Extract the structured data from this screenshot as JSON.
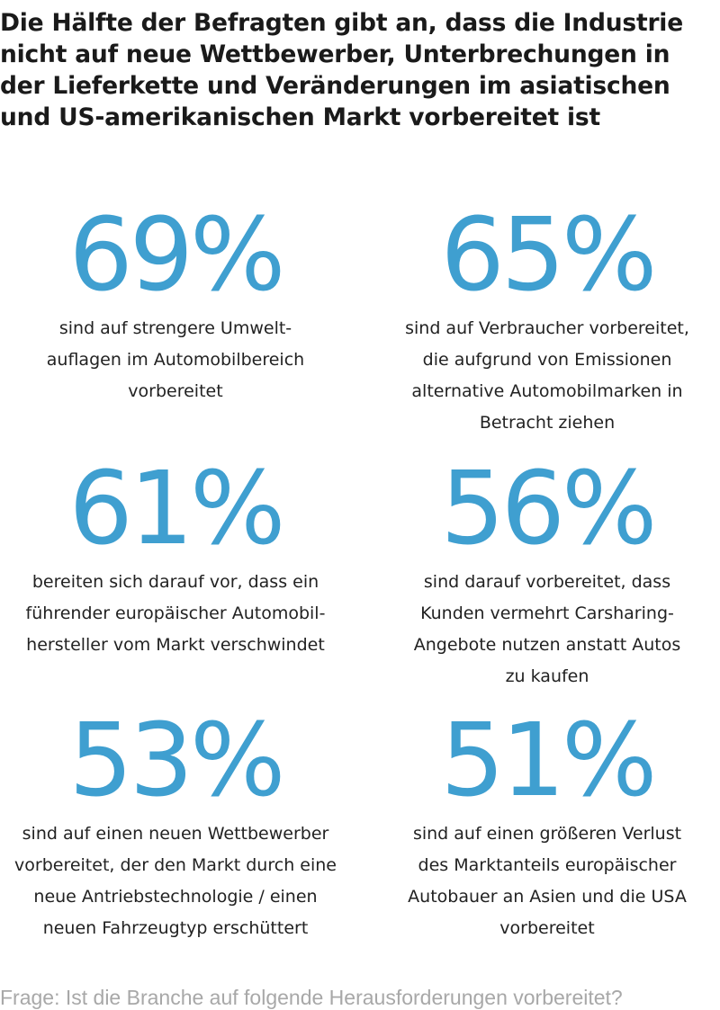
{
  "title_lines": [
    "Die Hälfte der Befragten gibt an, dass die Industrie",
    "nicht auf neue Wettbewerber, Unterbrechungen in",
    "der Lieferkette und Veränderungen im asiatischen",
    "und US-amerikanischen Markt vorbereitet ist"
  ],
  "accent_color": "#3f9fd0",
  "stats": [
    {
      "value": "69%",
      "lines": [
        "sind auf strengere Umwelt-",
        "auflagen im Automobilbereich",
        "vorbereitet"
      ]
    },
    {
      "value": "65%",
      "lines": [
        "sind auf Verbraucher vorbereitet,",
        "die aufgrund von Emissionen",
        "alternative Automobilmarken in",
        "Betracht ziehen"
      ]
    },
    {
      "value": "61%",
      "lines": [
        "bereiten sich darauf vor, dass ein",
        "führender europäischer Automobil-",
        "hersteller vom Markt verschwindet"
      ]
    },
    {
      "value": "56%",
      "lines": [
        "sind darauf vorbereitet, dass",
        "Kunden vermehrt Carsharing-",
        "Angebote nutzen anstatt Autos",
        "zu kaufen"
      ]
    },
    {
      "value": "53%",
      "lines": [
        "sind auf einen neuen Wettbewerber",
        "vorbereitet, der den Markt durch eine",
        "neue Antriebstechnologie / einen",
        "neuen Fahrzeugtyp erschüttert"
      ]
    },
    {
      "value": "51%",
      "lines": [
        "sind auf einen größeren Verlust",
        "des Marktanteils europäischer",
        "Autobauer an Asien und die USA",
        "vorbereitet"
      ]
    }
  ],
  "footer": "Frage: Ist die Branche auf folgende Herausforderungen vorbereitet?"
}
